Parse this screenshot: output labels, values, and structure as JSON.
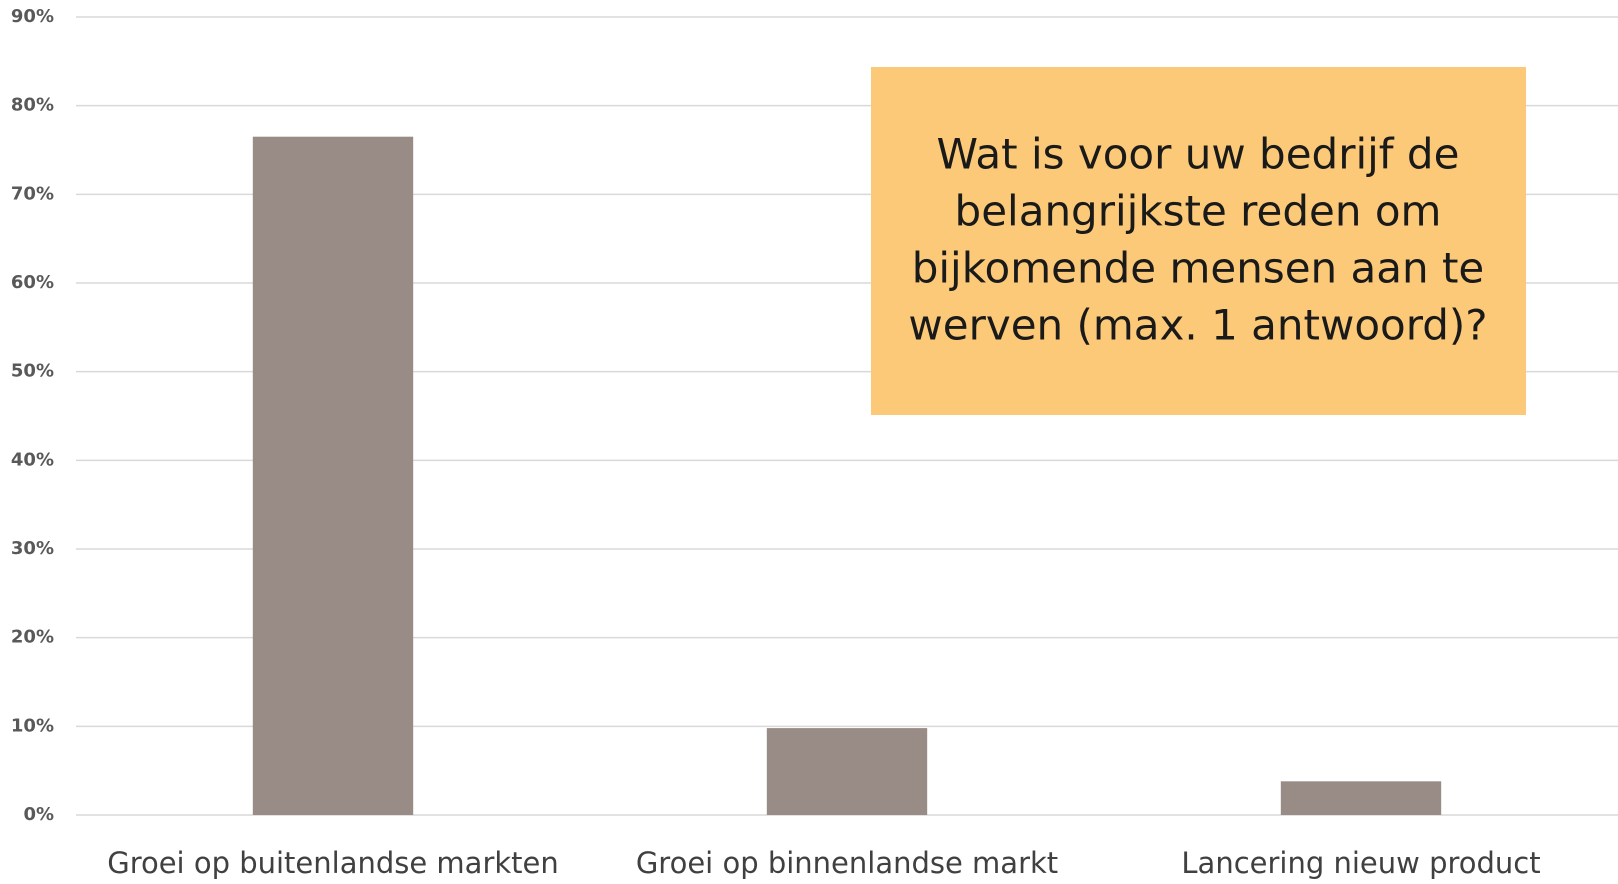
{
  "chart_data": {
    "type": "bar",
    "annotation": [
      "Wat is voor uw bedrijf de",
      "belangrijkste reden om",
      "bijkomende mensen aan te",
      "werven (max. 1 antwoord)?"
    ],
    "categories": [
      "Groei op buitenlandse markten",
      "Groei op binnenlandse markt",
      "Lancering nieuw product"
    ],
    "values": [
      76.5,
      9.8,
      3.8
    ],
    "color": "#998b85",
    "ylim": [
      0,
      90
    ],
    "yticks": [
      {
        "value": 0,
        "label": "0%"
      },
      {
        "value": 10,
        "label": "10%"
      },
      {
        "value": 20,
        "label": "20%"
      },
      {
        "value": 30,
        "label": "30%"
      },
      {
        "value": 40,
        "label": "40%"
      },
      {
        "value": 50,
        "label": "50%"
      },
      {
        "value": 60,
        "label": "60%"
      },
      {
        "value": 70,
        "label": "70%"
      },
      {
        "value": 80,
        "label": "80%"
      },
      {
        "value": 90,
        "label": "90%"
      }
    ],
    "grid": true
  }
}
